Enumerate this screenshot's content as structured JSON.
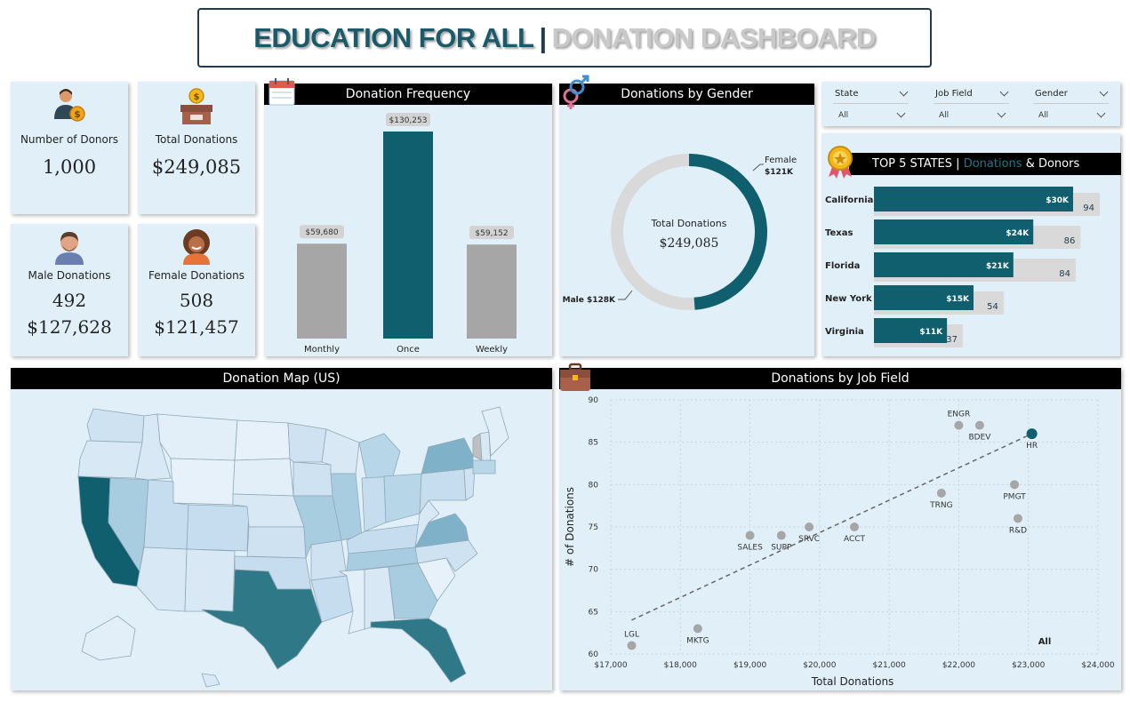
{
  "header": {
    "title_part1": "EDUCATION FOR ALL",
    "separator": "|",
    "title_part2": "DONATION DASHBOARD"
  },
  "kpis": {
    "donors_label": "Number of Donors",
    "donors_value": "1,000",
    "total_label": "Total Donations",
    "total_value": "$249,085",
    "male_label": "Male Donations",
    "male_count": "492",
    "male_amount": "$127,628",
    "female_label": "Female Donations",
    "female_count": "508",
    "female_amount": "$121,457"
  },
  "frequency": {
    "title": "Donation Frequency",
    "bars": [
      {
        "label": "Monthly",
        "value": 59680,
        "display": "$59,680"
      },
      {
        "label": "Once",
        "value": 130253,
        "display": "$130,253"
      },
      {
        "label": "Weekly",
        "value": 59152,
        "display": "$59,152"
      }
    ]
  },
  "gender": {
    "title": "Donations by Gender",
    "center_label": "Total Donations",
    "center_value": "$249,085",
    "female_label": "Female",
    "female_value": "$121K",
    "female_share": 0.488,
    "male_label": "Male $128K",
    "male_share": 0.512
  },
  "slicers": [
    {
      "label": "State",
      "value": "All"
    },
    {
      "label": "Job Field",
      "value": "All"
    },
    {
      "label": "Gender",
      "value": "All"
    }
  ],
  "top_states": {
    "title_part1": "TOP 5 STATES |",
    "title_part2": "Donations",
    "title_part3": "& Donors",
    "rows": [
      {
        "state": "California",
        "donation": 30,
        "donation_label": "$30K",
        "donors": 94
      },
      {
        "state": "Texas",
        "donation": 24,
        "donation_label": "$24K",
        "donors": 86
      },
      {
        "state": "Florida",
        "donation": 21,
        "donation_label": "$21K",
        "donors": 84
      },
      {
        "state": "New York",
        "donation": 15,
        "donation_label": "$15K",
        "donors": 54
      },
      {
        "state": "Virginia",
        "donation": 11,
        "donation_label": "$11K",
        "donors": 37
      }
    ]
  },
  "map": {
    "title": "Donation Map (US)"
  },
  "job_field": {
    "title": "Donations by Job Field",
    "xlabel": "Total Donations",
    "ylabel": "# of Donations",
    "all_label": "All"
  },
  "chart_data": [
    {
      "type": "bar",
      "title": "Donation Frequency",
      "categories": [
        "Monthly",
        "Once",
        "Weekly"
      ],
      "values": [
        59680,
        130253,
        59152
      ]
    },
    {
      "type": "pie",
      "title": "Donations by Gender",
      "categories": [
        "Female",
        "Male"
      ],
      "values": [
        121457,
        127628
      ]
    },
    {
      "type": "bar",
      "title": "TOP 5 STATES | Donations & Donors",
      "categories": [
        "California",
        "Texas",
        "Florida",
        "New York",
        "Virginia"
      ],
      "series": [
        {
          "name": "Donations",
          "values": [
            30,
            24,
            21,
            15,
            11
          ]
        },
        {
          "name": "Donors",
          "values": [
            94,
            86,
            84,
            54,
            37
          ]
        }
      ]
    },
    {
      "type": "scatter",
      "title": "Donations by Job Field",
      "xlabel": "Total Donations",
      "ylabel": "# of Donations",
      "xlim": [
        17000,
        24000
      ],
      "ylim": [
        60,
        90
      ],
      "x_ticks": [
        "$17,000",
        "$18,000",
        "$19,000",
        "$20,000",
        "$21,000",
        "$22,000",
        "$23,000",
        "$24,000"
      ],
      "y_ticks": [
        "60",
        "65",
        "70",
        "75",
        "80",
        "85",
        "90"
      ],
      "points": [
        {
          "label": "LGL",
          "x": 17300,
          "y": 61
        },
        {
          "label": "MKTG",
          "x": 18250,
          "y": 63
        },
        {
          "label": "SALES",
          "x": 19000,
          "y": 74
        },
        {
          "label": "SUPP",
          "x": 19450,
          "y": 74
        },
        {
          "label": "SRVC",
          "x": 19850,
          "y": 75
        },
        {
          "label": "ACCT",
          "x": 20500,
          "y": 75
        },
        {
          "label": "TRNG",
          "x": 21750,
          "y": 79
        },
        {
          "label": "ENGR",
          "x": 22000,
          "y": 87
        },
        {
          "label": "BDEV",
          "x": 22300,
          "y": 87
        },
        {
          "label": "PMGT",
          "x": 22800,
          "y": 80
        },
        {
          "label": "R&D",
          "x": 22850,
          "y": 76
        },
        {
          "label": "HR",
          "x": 23050,
          "y": 86
        }
      ],
      "highlight": "HR",
      "trendline": {
        "from": [
          17300,
          64
        ],
        "to": [
          23050,
          86
        ]
      },
      "grid": true
    }
  ]
}
